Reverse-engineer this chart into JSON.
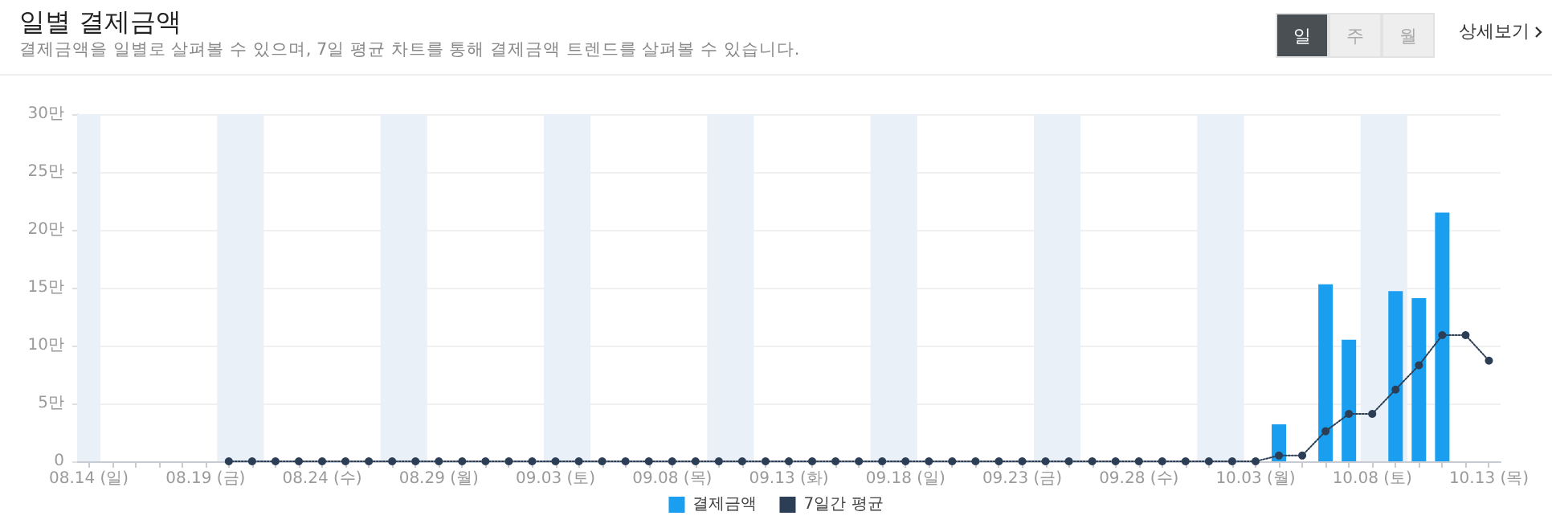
{
  "chart_data": {
    "type": "bar",
    "title": "일별 결제금액",
    "subtitle": "결제금액을 일별로 살펴볼 수 있으며, 7일 평균 차트를 통해 결제금액 트렌드를 살펴볼 수 있습니다.",
    "annotations": [
      "일",
      "주",
      "월",
      "상세보기"
    ],
    "x": [
      "--08-14",
      "--08-15",
      "--08-16",
      "--08-17",
      "--08-18",
      "--08-19",
      "--08-20",
      "--08-21",
      "--08-22",
      "--08-23",
      "--08-24",
      "--08-25",
      "--08-26",
      "--08-27",
      "--08-28",
      "--08-29",
      "--08-30",
      "--08-31",
      "--09-01",
      "--09-02",
      "--09-03",
      "--09-04",
      "--09-05",
      "--09-06",
      "--09-07",
      "--09-08",
      "--09-09",
      "--09-10",
      "--09-11",
      "--09-12",
      "--09-13",
      "--09-14",
      "--09-15",
      "--09-16",
      "--09-17",
      "--09-18",
      "--09-19",
      "--09-20",
      "--09-21",
      "--09-22",
      "--09-23",
      "--09-24",
      "--09-25",
      "--09-26",
      "--09-27",
      "--09-28",
      "--09-29",
      "--09-30",
      "--10-01",
      "--10-02",
      "--10-03",
      "--10-04",
      "--10-05",
      "--10-06",
      "--10-07",
      "--10-08",
      "--10-09",
      "--10-10",
      "--10-11",
      "--10-12",
      "--10-13"
    ],
    "series": [
      {
        "name": "결제금액",
        "color": "#1a9ff0",
        "values": [
          0,
          0,
          0,
          0,
          0,
          0,
          0,
          0,
          0,
          0,
          0,
          0,
          0,
          0,
          0,
          0,
          0,
          0,
          0,
          0,
          0,
          0,
          0,
          0,
          0,
          0,
          0,
          0,
          0,
          0,
          0,
          0,
          0,
          0,
          0,
          0,
          0,
          0,
          0,
          0,
          0,
          0,
          0,
          0,
          0,
          0,
          0,
          0,
          0,
          0,
          0,
          3.2,
          0,
          15.3,
          10.5,
          0,
          14.7,
          14.1,
          21.5,
          0,
          0
        ]
      },
      {
        "name": "7일간 평균",
        "type": "line",
        "color": "#2c3e55",
        "line_style": "dotted",
        "values": [
          null,
          null,
          null,
          null,
          null,
          null,
          0,
          0,
          0,
          0,
          0,
          0,
          0,
          0,
          0,
          0,
          0,
          0,
          0,
          0,
          0,
          0,
          0,
          0,
          0,
          0,
          0,
          0,
          0,
          0,
          0,
          0,
          0,
          0,
          0,
          0,
          0,
          0,
          0,
          0,
          0,
          0,
          0,
          0,
          0,
          0,
          0,
          0,
          0,
          0,
          0,
          0.5,
          0.5,
          2.6,
          4.1,
          4.1,
          6.2,
          8.3,
          10.9,
          10.9,
          8.7
        ]
      }
    ],
    "xlim": [
      "--08-13T12:00",
      "--10-13T12:00"
    ],
    "xticks": [
      {
        "value": "--08-14",
        "label": "08.14 (일)"
      },
      {
        "value": "--08-15",
        "label": null
      },
      {
        "value": "--08-16",
        "label": null
      },
      {
        "value": "--08-17",
        "label": null
      },
      {
        "value": "--08-18",
        "label": null
      },
      {
        "value": "--08-19",
        "label": "08.19 (금)"
      },
      {
        "value": "--08-20",
        "label": null
      },
      {
        "value": "--08-21",
        "label": null
      },
      {
        "value": "--08-22",
        "label": null
      },
      {
        "value": "--08-23",
        "label": null
      },
      {
        "value": "--08-24",
        "label": "08.24 (수)"
      },
      {
        "value": "--08-25",
        "label": null
      },
      {
        "value": "--08-26",
        "label": null
      },
      {
        "value": "--08-27",
        "label": null
      },
      {
        "value": "--08-28",
        "label": null
      },
      {
        "value": "--08-29",
        "label": "08.29 (월)"
      },
      {
        "value": "--08-30",
        "label": null
      },
      {
        "value": "--08-31",
        "label": null
      },
      {
        "value": "--09-01",
        "label": null
      },
      {
        "value": "--09-02",
        "label": null
      },
      {
        "value": "--09-03",
        "label": "09.03 (토)"
      },
      {
        "value": "--09-04",
        "label": null
      },
      {
        "value": "--09-05",
        "label": null
      },
      {
        "value": "--09-06",
        "label": null
      },
      {
        "value": "--09-07",
        "label": null
      },
      {
        "value": "--09-08",
        "label": "09.08 (목)"
      },
      {
        "value": "--09-09",
        "label": null
      },
      {
        "value": "--09-10",
        "label": null
      },
      {
        "value": "--09-11",
        "label": null
      },
      {
        "value": "--09-12",
        "label": null
      },
      {
        "value": "--09-13",
        "label": "09.13 (화)"
      },
      {
        "value": "--09-14",
        "label": null
      },
      {
        "value": "--09-15",
        "label": null
      },
      {
        "value": "--09-16",
        "label": null
      },
      {
        "value": "--09-17",
        "label": null
      },
      {
        "value": "--09-18",
        "label": "09.18 (일)"
      },
      {
        "value": "--09-19",
        "label": null
      },
      {
        "value": "--09-20",
        "label": null
      },
      {
        "value": "--09-21",
        "label": null
      },
      {
        "value": "--09-22",
        "label": null
      },
      {
        "value": "--09-23",
        "label": "09.23 (금)"
      },
      {
        "value": "--09-24",
        "label": null
      },
      {
        "value": "--09-25",
        "label": null
      },
      {
        "value": "--09-26",
        "label": null
      },
      {
        "value": "--09-27",
        "label": null
      },
      {
        "value": "--09-28",
        "label": "09.28 (수)"
      },
      {
        "value": "--09-29",
        "label": null
      },
      {
        "value": "--09-30",
        "label": null
      },
      {
        "value": "--10-01",
        "label": null
      },
      {
        "value": "--10-02",
        "label": null
      },
      {
        "value": "--10-03",
        "label": "10.03 (월)"
      },
      {
        "value": "--10-04",
        "label": null
      },
      {
        "value": "--10-05",
        "label": null
      },
      {
        "value": "--10-06",
        "label": null
      },
      {
        "value": "--10-07",
        "label": null
      },
      {
        "value": "--10-08",
        "label": "10.08 (토)"
      },
      {
        "value": "--10-09",
        "label": null
      },
      {
        "value": "--10-10",
        "label": null
      },
      {
        "value": "--10-11",
        "label": null
      },
      {
        "value": "--10-12",
        "label": null
      },
      {
        "value": "--10-13",
        "label": "10.13 (목)"
      }
    ],
    "ylim": [
      0,
      30
    ],
    "yticks": [
      0,
      {
        "value": 5,
        "label": "5만"
      },
      {
        "value": 10,
        "label": "10만"
      },
      {
        "value": 15,
        "label": "15만"
      },
      {
        "value": 20,
        "label": "20만"
      },
      {
        "value": 25,
        "label": "25만"
      },
      {
        "value": 30,
        "label": "30만"
      }
    ],
    "bands": [
      {
        "axis": "x",
        "from": "--08-13T12:00",
        "to": "--08-14T12:00",
        "color": "#eaf0f7"
      },
      {
        "axis": "x",
        "from": "--08-19T12:00",
        "to": "--08-21T12:00",
        "color": "#eaf0f7"
      },
      {
        "axis": "x",
        "from": "--08-26T12:00",
        "to": "--08-28T12:00",
        "color": "#eaf0f7"
      },
      {
        "axis": "x",
        "from": "--09-02T12:00",
        "to": "--09-04T12:00",
        "color": "#eaf0f7"
      },
      {
        "axis": "x",
        "from": "--09-09T12:00",
        "to": "--09-11T12:00",
        "color": "#eaf0f7"
      },
      {
        "axis": "x",
        "from": "--09-16T12:00",
        "to": "--09-18T12:00",
        "color": "#eaf0f7"
      },
      {
        "axis": "x",
        "from": "--09-23T12:00",
        "to": "--09-25T12:00",
        "color": "#eaf0f7"
      },
      {
        "axis": "x",
        "from": "--09-30T12:00",
        "to": "--10-02T12:00",
        "color": "#eaf0f7"
      },
      {
        "axis": "x",
        "from": "--10-07T12:00",
        "to": "--10-09T12:00",
        "color": "#eaf0f7"
      }
    ],
    "grid": "y",
    "legend": "bottom",
    "marker": "circle"
  }
}
